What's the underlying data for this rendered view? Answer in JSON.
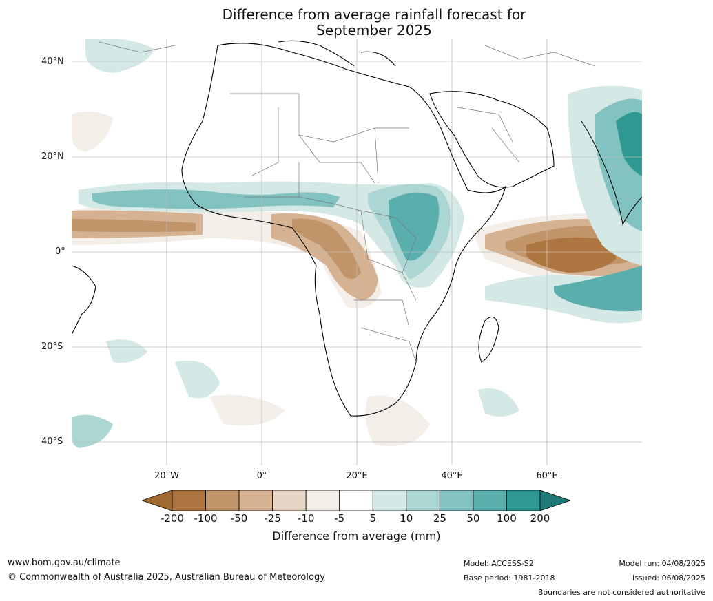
{
  "title_line1": "Difference from average rainfall forecast for",
  "title_line2": "September 2025",
  "lat_labels": [
    "40°N",
    "20°N",
    "0°",
    "20°S",
    "40°S"
  ],
  "lon_labels": [
    "20°W",
    "0°",
    "20°E",
    "40°E",
    "60°E"
  ],
  "colorbar": {
    "ticks": [
      "-200",
      "-100",
      "-50",
      "-25",
      "-10",
      "-5",
      "5",
      "10",
      "25",
      "50",
      "100",
      "200"
    ],
    "colors": [
      "#a0692d",
      "#ad7641",
      "#c1946a",
      "#d4b292",
      "#e6d5c4",
      "#f3eee8",
      "#ffffff",
      "#d4e8e6",
      "#acd6d3",
      "#82c2c0",
      "#5aaeac",
      "#2f9892",
      "#1e7a76"
    ],
    "label": "Difference from average (mm)"
  },
  "footer": {
    "website": "www.bom.gov.au/climate",
    "copyright": "© Commonwealth of Australia 2025, Australian Bureau of Meteorology",
    "model": "Model: ACCESS-S2",
    "base_period": "Base period: 1981-2018",
    "model_run": "Model run: 04/08/2025",
    "issued": "Issued: 06/08/2025",
    "disclaimer": "Boundaries are not considered authoritative"
  }
}
